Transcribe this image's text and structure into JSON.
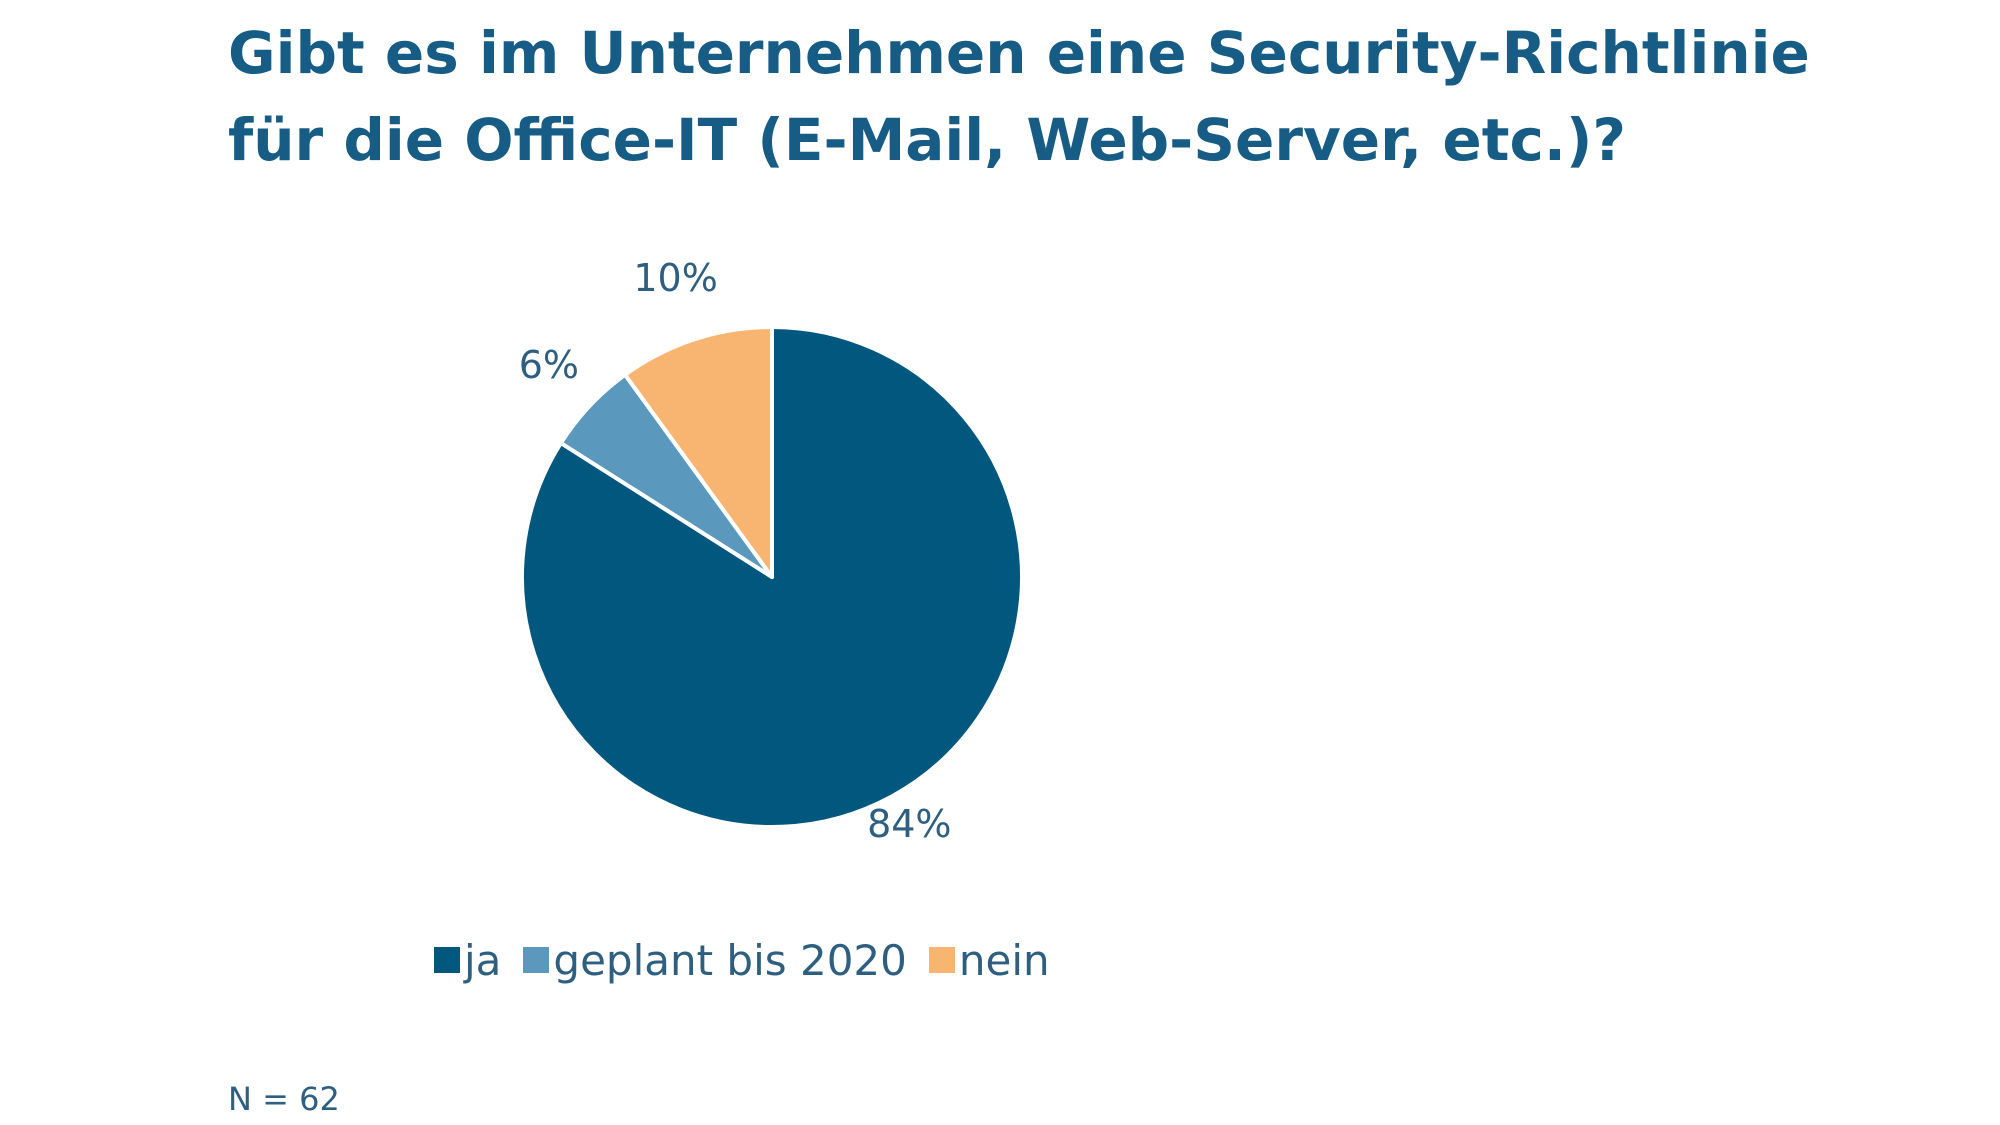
{
  "title_line1": "Gibt es im Unternehmen eine Security-Richtlinie",
  "title_line2": "für die Office-IT (E-Mail, Web-Server, etc.)?",
  "footnote": "N = 62",
  "chart_data": {
    "type": "pie",
    "title": "Gibt es im Unternehmen eine Security-Richtlinie für die Office-IT (E-Mail, Web-Server, etc.)?",
    "categories": [
      "ja",
      "geplant bis 2020",
      "nein"
    ],
    "values": [
      84,
      6,
      10
    ],
    "value_labels": [
      "84%",
      "6%",
      "10%"
    ],
    "colors": [
      "#02577f",
      "#5a98bd",
      "#f7b571"
    ],
    "legend_position": "bottom"
  }
}
